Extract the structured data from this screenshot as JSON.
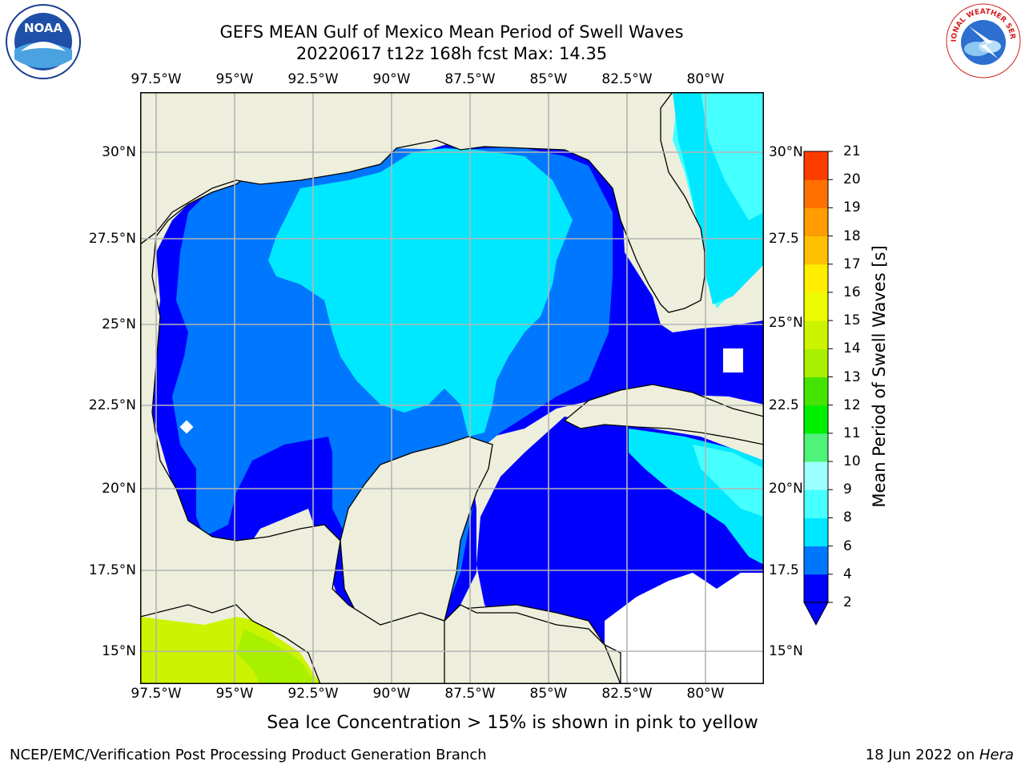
{
  "header": {
    "title_line1": "GEFS MEAN Gulf of Mexico Mean Period of Swell Waves",
    "title_line2": "20220617 t12z 168h fcst   Max: 14.35"
  },
  "logos": {
    "left": {
      "icon": "noaa-logo-icon",
      "text": "NOAA"
    },
    "right": {
      "icon": "national-weather-service-logo-icon",
      "text": "NATIONAL WEATHER SERVICE"
    }
  },
  "map": {
    "lon_ticks": [
      "97.5°W",
      "95°W",
      "92.5°W",
      "90°W",
      "87.5°W",
      "85°W",
      "82.5°W",
      "80°W"
    ],
    "lat_ticks_left": [
      "30°N",
      "27.5°N",
      "25°N",
      "22.5°N",
      "20°N",
      "17.5°N",
      "15°N"
    ],
    "lat_ticks_right": [
      "30°N",
      "27.5",
      "25°N",
      "22.5",
      "20°N",
      "17.5",
      "15°N"
    ],
    "land_color": "#eeeedc",
    "coast_color": "#000000",
    "grid_color": "#b4b4b4"
  },
  "colorbar": {
    "label": "Mean Period of Swell Waves [s]",
    "ticks": [
      "2",
      "4",
      "6",
      "8",
      "9",
      "10",
      "11",
      "12",
      "13",
      "14",
      "15",
      "16",
      "17",
      "18",
      "19",
      "20",
      "21"
    ],
    "colors": [
      "#0000ff",
      "#0077ff",
      "#00e8ff",
      "#46ffff",
      "#9cffff",
      "#4ef37a",
      "#00f000",
      "#44e400",
      "#a8f000",
      "#ccf400",
      "#eefc00",
      "#ffee00",
      "#ffc000",
      "#ff9c00",
      "#ff7000",
      "#ff3c00",
      "#ff0000"
    ],
    "extend_color": "#0000ff"
  },
  "footer": {
    "subtitle": "Sea Ice Concentration > 15% is shown in pink to yellow",
    "left": "NCEP/EMC/Verification Post Processing Product Generation Branch",
    "right_date": "18 Jun 2022 on ",
    "right_host": "Hera"
  }
}
